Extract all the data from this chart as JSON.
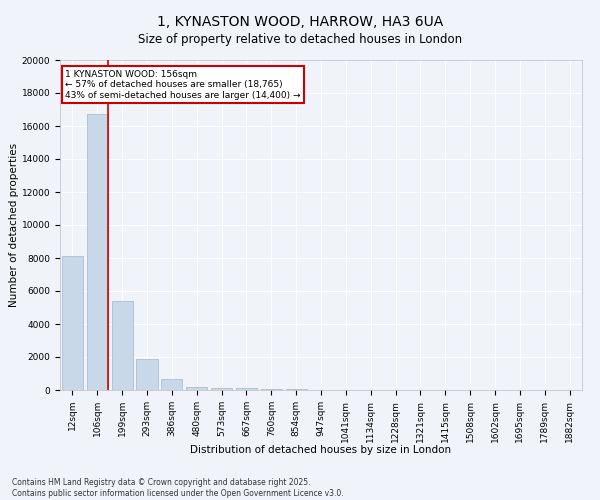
{
  "title": "1, KYNASTON WOOD, HARROW, HA3 6UA",
  "subtitle": "Size of property relative to detached houses in London",
  "xlabel": "Distribution of detached houses by size in London",
  "ylabel": "Number of detached properties",
  "categories": [
    "12sqm",
    "106sqm",
    "199sqm",
    "293sqm",
    "386sqm",
    "480sqm",
    "573sqm",
    "667sqm",
    "760sqm",
    "854sqm",
    "947sqm",
    "1041sqm",
    "1134sqm",
    "1228sqm",
    "1321sqm",
    "1415sqm",
    "1508sqm",
    "1602sqm",
    "1695sqm",
    "1789sqm",
    "1882sqm"
  ],
  "values": [
    8100,
    16700,
    5400,
    1900,
    650,
    200,
    130,
    100,
    80,
    60,
    0,
    0,
    0,
    0,
    0,
    0,
    0,
    0,
    0,
    0,
    0
  ],
  "bar_color": "#c8d8e8",
  "bar_edge_color": "#a0b8cc",
  "vline_color": "#cc0000",
  "vline_x_index": 1,
  "annotation_line1": "1 KYNASTON WOOD: 156sqm",
  "annotation_line2": "← 57% of detached houses are smaller (18,765)",
  "annotation_line3": "43% of semi-detached houses are larger (14,400) →",
  "annotation_box_color": "#cc0000",
  "ylim": [
    0,
    20000
  ],
  "yticks": [
    0,
    2000,
    4000,
    6000,
    8000,
    10000,
    12000,
    14000,
    16000,
    18000,
    20000
  ],
  "footer_line1": "Contains HM Land Registry data © Crown copyright and database right 2025.",
  "footer_line2": "Contains public sector information licensed under the Open Government Licence v3.0.",
  "bg_color": "#f0f4fa",
  "plot_bg_color": "#f0f4fa",
  "grid_color": "#ffffff",
  "title_fontsize": 10,
  "subtitle_fontsize": 8.5,
  "axis_label_fontsize": 7.5,
  "tick_fontsize": 6.5,
  "annotation_fontsize": 6.5,
  "footer_fontsize": 5.5
}
